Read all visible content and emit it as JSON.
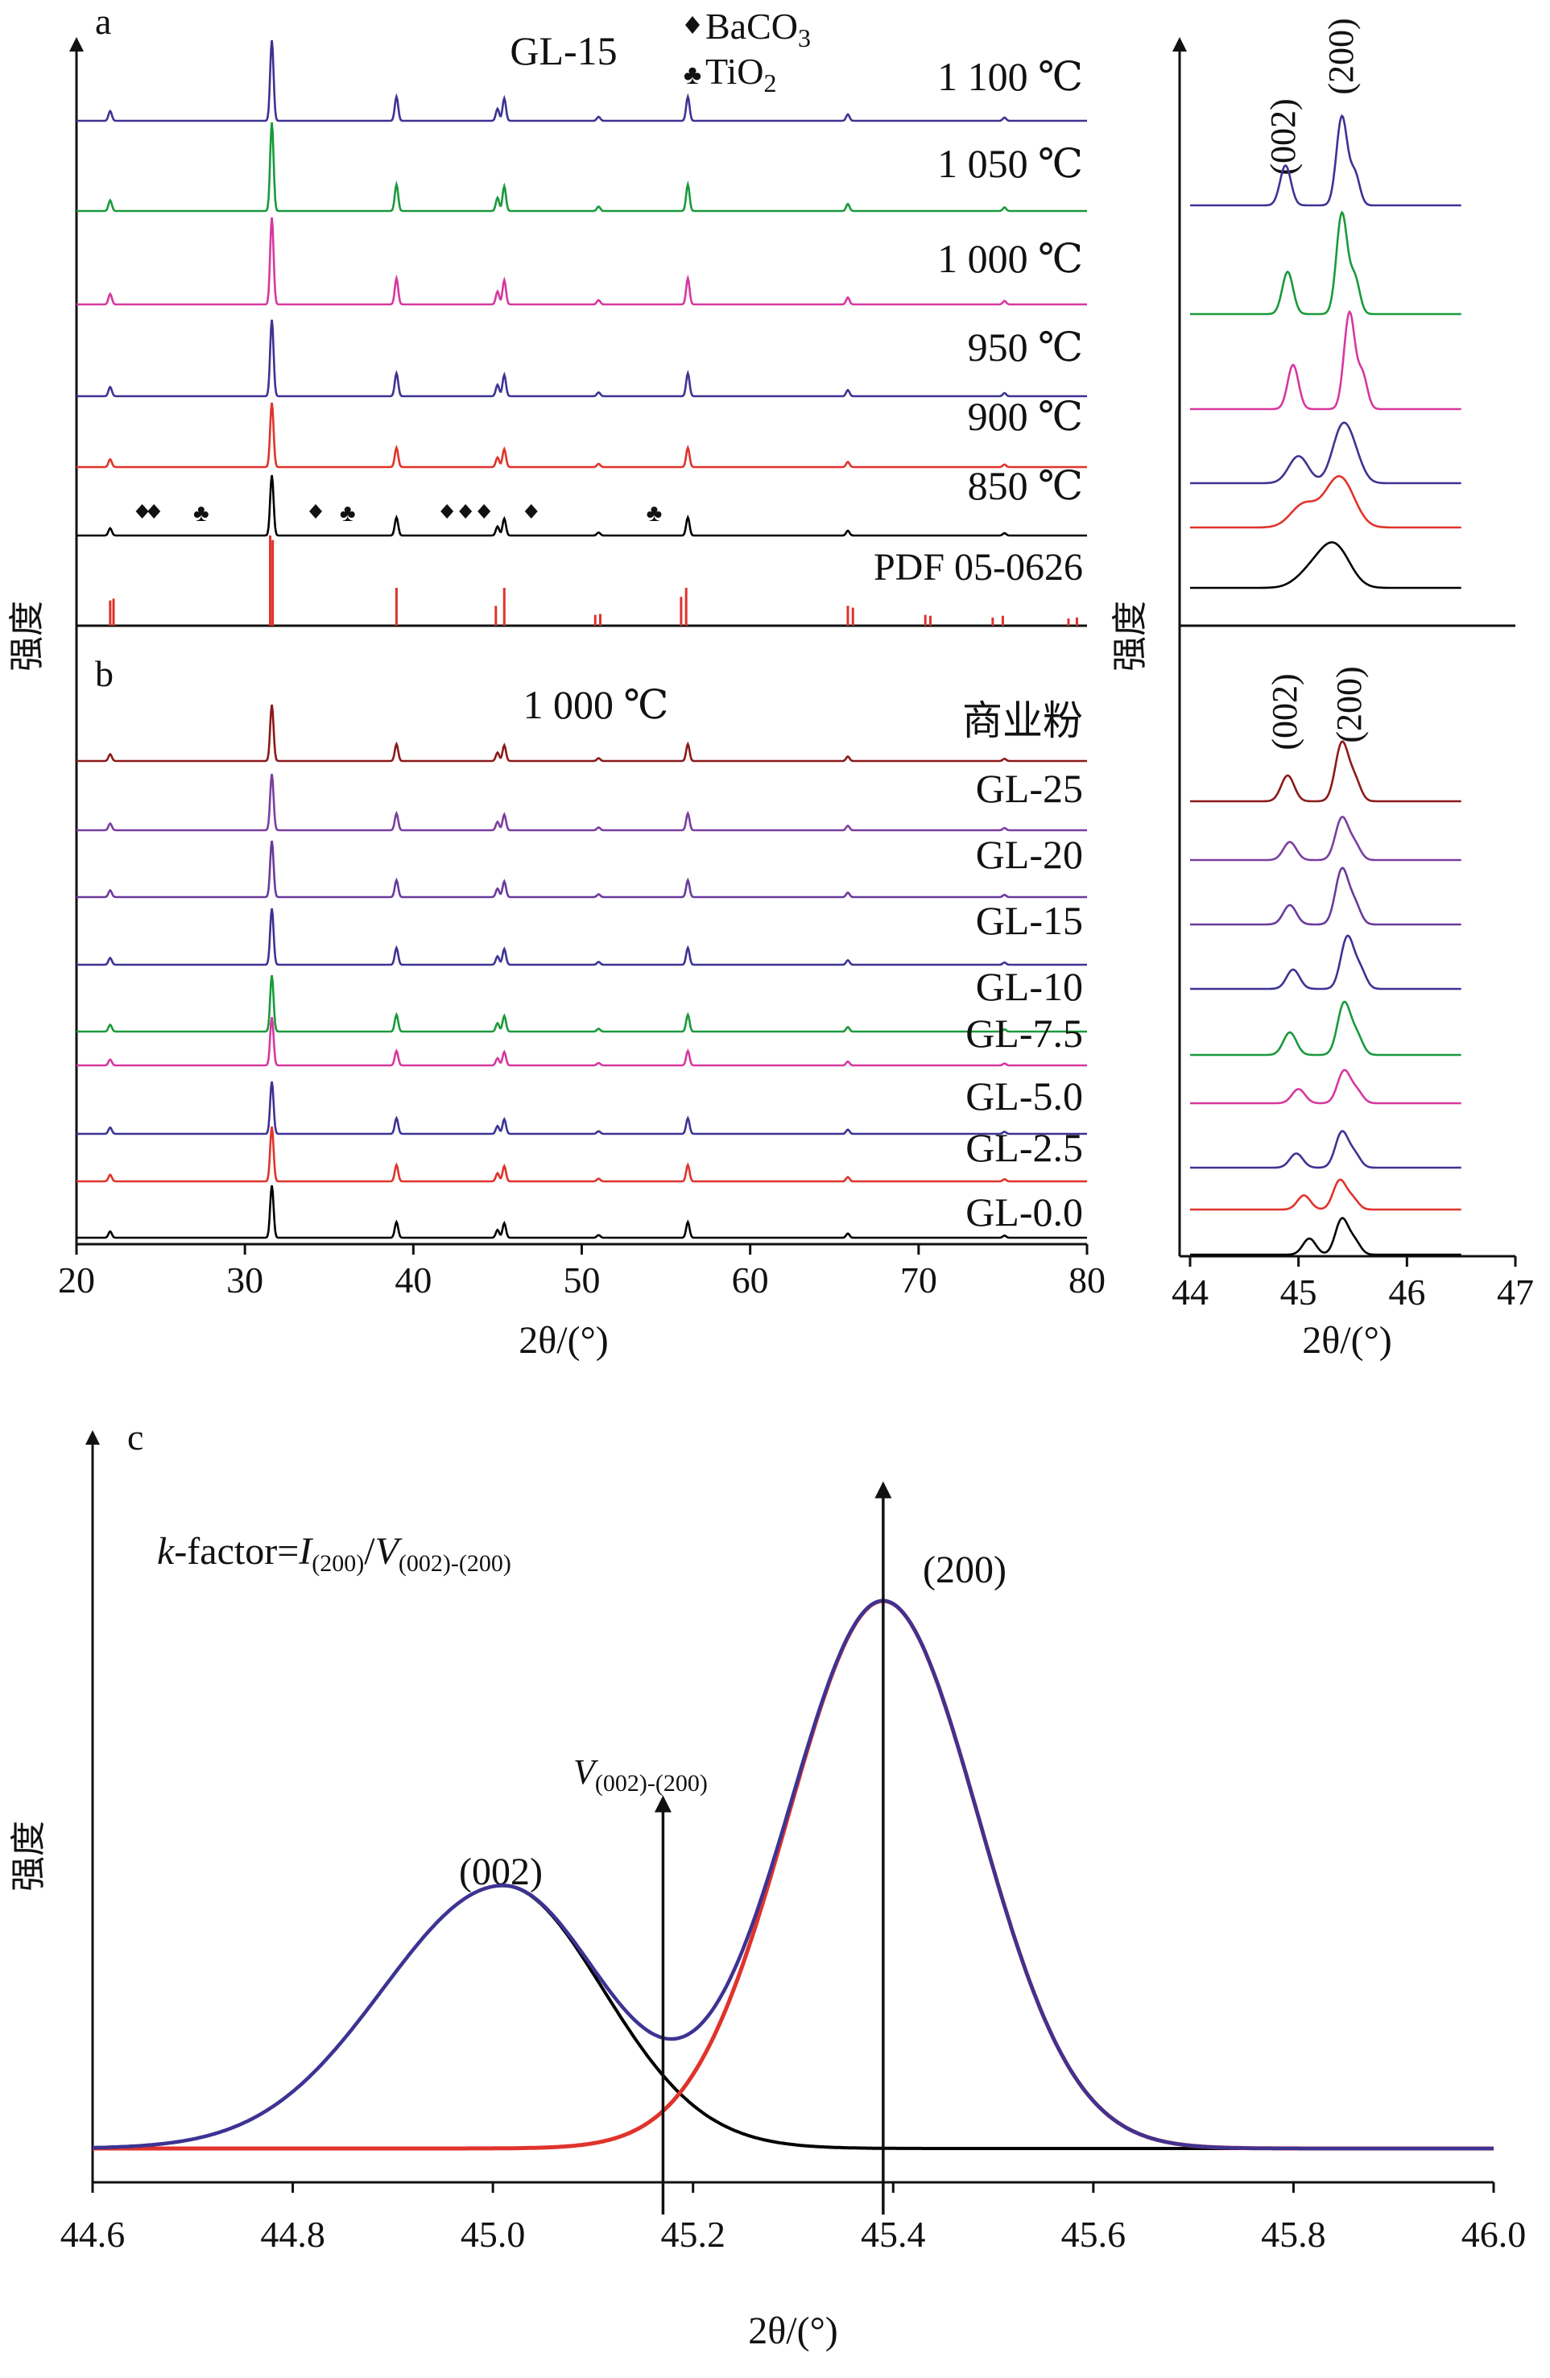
{
  "figure": {
    "panel_a_label": "a",
    "panel_b_label": "b",
    "panel_c_label": "c",
    "y_axis_label": "强度",
    "x_axis_label_ab": "2θ/(°)",
    "x_axis_label_zoom": "2θ/(°)",
    "x_axis_label_c": "2θ/(°)",
    "panel_a_title": "GL-15",
    "panel_b_title": "1 000 ℃",
    "legend_baco3": "BaCO",
    "legend_baco3_sub": "3",
    "legend_tio2": "TiO",
    "legend_tio2_sub": "2",
    "pdf_label": "PDF 05-0626",
    "zoom_a_label_002": "(002)",
    "zoom_a_label_200": "(200)",
    "zoom_b_label_002": "(002)",
    "zoom_b_label_200": "(200)",
    "c_formula_k": "k",
    "c_formula_rest": "-factor=",
    "c_formula_I": "I",
    "c_formula_I_sub": "(200)",
    "c_formula_slash": "/",
    "c_formula_V": "V",
    "c_formula_V_sub": "(002)-(200)",
    "c_label_002": "(002)",
    "c_label_200": "(200)",
    "c_label_V": "V",
    "c_label_V_sub": "(002)-(200)"
  },
  "chart_data": [
    {
      "panel": "a",
      "type": "line",
      "title": "GL-15",
      "xlabel": "2θ/(°)",
      "ylabel": "强度",
      "xlim": [
        20,
        80
      ],
      "x_ticks": [
        20,
        30,
        40,
        50,
        60,
        70,
        80
      ],
      "peak_positions_2theta": [
        22.0,
        31.6,
        39.0,
        45.0,
        45.4,
        51.0,
        56.3,
        65.8,
        75.1
      ],
      "peak_relative_intensity": [
        0.12,
        1.0,
        0.3,
        0.15,
        0.28,
        0.05,
        0.3,
        0.08,
        0.04
      ],
      "series": [
        {
          "name": "1 100 ℃",
          "color": "#3d3393"
        },
        {
          "name": "1 050 ℃",
          "color": "#1a9a3c"
        },
        {
          "name": "1 000 ℃",
          "color": "#d6389f"
        },
        {
          "name": "950 ℃",
          "color": "#3d3393"
        },
        {
          "name": "900 ℃",
          "color": "#e0332b"
        },
        {
          "name": "850 ℃",
          "color": "#000000"
        }
      ],
      "reference": {
        "name": "PDF 05-0626",
        "color": "#e0332b",
        "sticks": [
          [
            22.0,
            0.28
          ],
          [
            22.2,
            0.3
          ],
          [
            31.5,
            1.0
          ],
          [
            31.65,
            0.95
          ],
          [
            39.0,
            0.42
          ],
          [
            44.9,
            0.22
          ],
          [
            45.4,
            0.42
          ],
          [
            50.8,
            0.12
          ],
          [
            51.1,
            0.13
          ],
          [
            55.9,
            0.32
          ],
          [
            56.2,
            0.42
          ],
          [
            65.8,
            0.22
          ],
          [
            66.1,
            0.2
          ],
          [
            70.4,
            0.12
          ],
          [
            70.7,
            0.11
          ],
          [
            74.4,
            0.09
          ],
          [
            75.0,
            0.11
          ],
          [
            78.9,
            0.08
          ],
          [
            79.4,
            0.09
          ]
        ]
      },
      "impurity_markers": {
        "BaCO3": [
          23.9,
          24.6,
          34.2,
          42.0,
          43.1,
          44.2,
          47.0
        ],
        "TiO2": [
          27.4,
          36.1,
          54.3
        ]
      }
    },
    {
      "panel": "b",
      "type": "line",
      "title": "1 000 ℃",
      "xlabel": "2θ/(°)",
      "ylabel": "强度",
      "xlim": [
        20,
        80
      ],
      "x_ticks": [
        20,
        30,
        40,
        50,
        60,
        70,
        80
      ],
      "peak_positions_2theta": [
        22.0,
        31.6,
        39.0,
        45.0,
        45.4,
        51.0,
        56.3,
        65.8,
        75.1
      ],
      "series": [
        {
          "name": "商业粉",
          "color": "#8b1a1a"
        },
        {
          "name": "GL-25",
          "color": "#7a3fa0"
        },
        {
          "name": "GL-20",
          "color": "#6a3a9c"
        },
        {
          "name": "GL-15",
          "color": "#3d3393"
        },
        {
          "name": "GL-10",
          "color": "#1a9a3c"
        },
        {
          "name": "GL-7.5",
          "color": "#d6389f"
        },
        {
          "name": "GL-5.0",
          "color": "#3d3393"
        },
        {
          "name": "GL-2.5",
          "color": "#e0332b"
        },
        {
          "name": "GL-0.0",
          "color": "#000000"
        }
      ]
    },
    {
      "panel": "a-zoom",
      "type": "line",
      "xlabel": "2θ/(°)",
      "xlim": [
        44,
        47
      ],
      "x_ticks": [
        44,
        45,
        46,
        47
      ],
      "annotations": [
        "(002)",
        "(200)"
      ],
      "series": [
        {
          "name": "1 100 ℃",
          "color": "#3d3393",
          "p002": 44.88,
          "h002": 0.45,
          "p200": 45.4,
          "h200": 1.0
        },
        {
          "name": "1 050 ℃",
          "color": "#1a9a3c",
          "p002": 44.9,
          "h002": 0.42,
          "p200": 45.4,
          "h200": 1.0
        },
        {
          "name": "1 000 ℃",
          "color": "#d6389f",
          "p002": 44.95,
          "h002": 0.45,
          "p200": 45.47,
          "h200": 0.98
        },
        {
          "name": "950 ℃",
          "color": "#3d3393",
          "p002": 45.0,
          "h002": 0.28,
          "p200": 45.4,
          "h200": 0.55
        },
        {
          "name": "900 ℃",
          "color": "#e0332b",
          "p002": 45.05,
          "h002": 0.25,
          "p200": 45.35,
          "h200": 0.45
        },
        {
          "name": "850 ℃",
          "color": "#000000",
          "p002": 45.1,
          "h002": 0.2,
          "p200": 45.3,
          "h200": 0.5
        }
      ]
    },
    {
      "panel": "b-zoom",
      "type": "line",
      "xlabel": "2θ/(°)",
      "xlim": [
        44,
        47
      ],
      "x_ticks": [
        44,
        45,
        46,
        47
      ],
      "annotations": [
        "(002)",
        "(200)"
      ],
      "series": [
        {
          "name": "商业粉",
          "color": "#8b1a1a",
          "p002": 44.9,
          "h002": 0.4,
          "p200": 45.4,
          "h200": 0.9
        },
        {
          "name": "GL-25",
          "color": "#7a3fa0",
          "p002": 44.92,
          "h002": 0.28,
          "p200": 45.4,
          "h200": 0.65
        },
        {
          "name": "GL-20",
          "color": "#6a3a9c",
          "p002": 44.92,
          "h002": 0.3,
          "p200": 45.4,
          "h200": 0.85
        },
        {
          "name": "GL-15",
          "color": "#3d3393",
          "p002": 44.95,
          "h002": 0.3,
          "p200": 45.45,
          "h200": 0.8
        },
        {
          "name": "GL-10",
          "color": "#1a9a3c",
          "p002": 44.92,
          "h002": 0.35,
          "p200": 45.42,
          "h200": 0.8
        },
        {
          "name": "GL-7.5",
          "color": "#d6389f",
          "p002": 45.0,
          "h002": 0.22,
          "p200": 45.42,
          "h200": 0.5
        },
        {
          "name": "GL-5.0",
          "color": "#3d3393",
          "p002": 44.98,
          "h002": 0.22,
          "p200": 45.4,
          "h200": 0.55
        },
        {
          "name": "GL-2.5",
          "color": "#e0332b",
          "p002": 45.05,
          "h002": 0.22,
          "p200": 45.38,
          "h200": 0.45
        },
        {
          "name": "GL-0.0",
          "color": "#000000",
          "p002": 45.1,
          "h002": 0.25,
          "p200": 45.4,
          "h200": 0.55
        }
      ]
    },
    {
      "panel": "c",
      "type": "line",
      "xlabel": "2θ/(°)",
      "ylabel": "强度",
      "xlim": [
        44.6,
        46.0
      ],
      "x_ticks": [
        44.6,
        44.8,
        45.0,
        45.2,
        45.4,
        45.6,
        45.8,
        46.0
      ],
      "peaks": [
        {
          "label": "(002)",
          "center": 45.01,
          "height": 0.48,
          "sigma_left": 0.12,
          "sigma_right": 0.1,
          "color": "#000000"
        },
        {
          "label": "(200)",
          "center": 45.39,
          "height": 1.0,
          "sigma": 0.095,
          "color": "#e0332b"
        }
      ],
      "sum_color": "#3d3393",
      "valley_arrow_x": 45.17,
      "peak_arrow_x": 45.39,
      "annotations": [
        "k-factor=I(200)/V(002)-(200)",
        "V(002)-(200)",
        "(002)",
        "(200)"
      ]
    }
  ]
}
